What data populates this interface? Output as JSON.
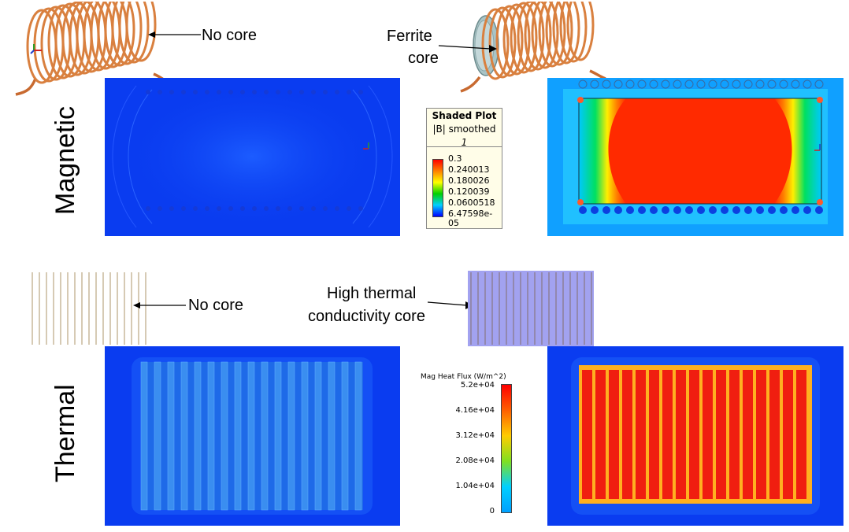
{
  "row_labels": {
    "magnetic": "Magnetic",
    "thermal": "Thermal"
  },
  "callouts": {
    "no_core_top": "No core",
    "ferrite_core_line1": "Ferrite",
    "ferrite_core_line2": "core",
    "no_core_bottom": "No core",
    "high_thermal_line1": "High thermal",
    "high_thermal_line2": "conductivity core"
  },
  "magnetic_legend": {
    "title": "Shaded Plot",
    "subtitle": "|B| smoothed",
    "scale_index": "1",
    "ticks": [
      "0.3",
      "0.240013",
      "0.180026",
      "0.120039",
      "0.0600518",
      "6.47598e-05"
    ]
  },
  "thermal_legend": {
    "title": "Mag Heat Flux (W/m^2)",
    "ticks": [
      "5.2e+04",
      "4.16e+04",
      "3.12e+04",
      "2.08e+04",
      "1.04e+04",
      "0"
    ]
  },
  "colors": {
    "sim_background": "#0a3cf0",
    "high_field": "#ff2a00",
    "copper": "#d6783c",
    "core_gray": "#a9c4c6",
    "core_blue": "#a2a2f0"
  },
  "icons": [
    "coil-no-core-icon",
    "coil-ferrite-core-icon",
    "coil-section-no-core-icon",
    "coil-section-with-core-icon"
  ]
}
